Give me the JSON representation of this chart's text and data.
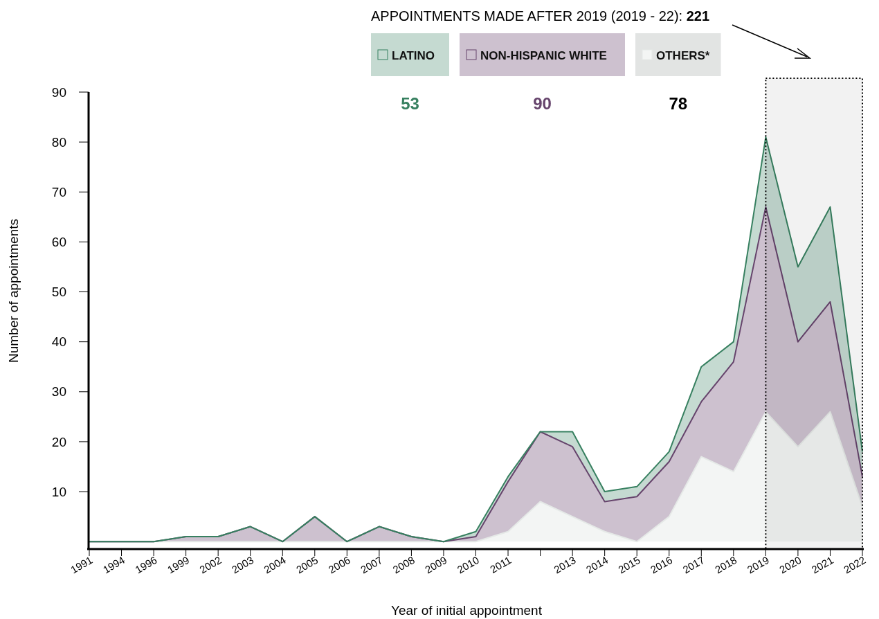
{
  "chart_data": {
    "type": "area",
    "stacked": true,
    "title": "APPOINTMENTS MADE AFTER 2019 (2019 - 22): 221",
    "xlabel": "Year of initial appointment",
    "ylabel": "Number of appointments",
    "categories": [
      "1991",
      "1994",
      "1996",
      "1999",
      "2002",
      "2003",
      "2004",
      "2005",
      "2006",
      "2007",
      "2008",
      "2009",
      "2010",
      "2011",
      null,
      "2013",
      "2014",
      "2015",
      "2016",
      "2017",
      "2018",
      "2019",
      "2020",
      "2021",
      "2022"
    ],
    "series": [
      {
        "name": "OTHERS*",
        "color": "#f3f5f4",
        "values": [
          0,
          0,
          0,
          0,
          0,
          0,
          0,
          0,
          0,
          0,
          0,
          0,
          0,
          2,
          8,
          5,
          2,
          0,
          5,
          17,
          14,
          26,
          19,
          26,
          7
        ]
      },
      {
        "name": "NON-HISPANIC WHITE",
        "color": "#cdc1cf",
        "values": [
          0,
          0,
          0,
          1,
          1,
          3,
          0,
          5,
          0,
          3,
          1,
          0,
          1,
          10,
          14,
          14,
          6,
          9,
          11,
          11,
          22,
          41,
          21,
          22,
          6
        ]
      },
      {
        "name": "LATINO",
        "color": "#c5dad1",
        "values": [
          0,
          0,
          0,
          0,
          0,
          0,
          0,
          0,
          0,
          0,
          0,
          0,
          1,
          1,
          0,
          3,
          2,
          2,
          2,
          7,
          4,
          14,
          15,
          19,
          5
        ]
      }
    ],
    "ylim": [
      -1.5,
      90
    ],
    "yticks": [
      10,
      20,
      30,
      40,
      50,
      60,
      70,
      80,
      90
    ],
    "legend": "top",
    "bands": [
      {
        "axis": "x",
        "from": "2019",
        "to": "2022",
        "color": "#000000"
      }
    ],
    "annotations": [
      "53",
      "90",
      "78"
    ]
  }
}
